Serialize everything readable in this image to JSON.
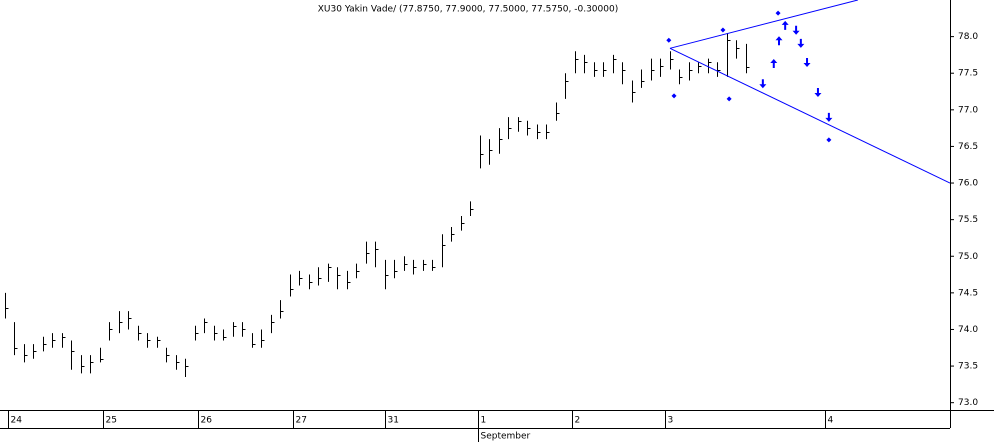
{
  "chart_data": {
    "type": "hlc",
    "title": "XU30 Yakin Vade/ (77.8750, 77.9000, 77.5000, 77.5750, -0.30000)",
    "x_group_label": "September",
    "color": "#000000",
    "xlim": [
      0,
      200
    ],
    "ylim": [
      72.9,
      78.5
    ],
    "yticks": [
      {
        "value": 73,
        "label": "73.0"
      },
      73.5,
      {
        "value": 74,
        "label": "74.0"
      },
      74.5,
      {
        "value": 75,
        "label": "75.0"
      },
      75.5,
      {
        "value": 76,
        "label": "76.0"
      },
      76.5,
      {
        "value": 77,
        "label": "77.0"
      },
      77.5,
      {
        "value": 78,
        "label": "78.0"
      }
    ],
    "xticks": [
      {
        "value": 1.7,
        "label": "24"
      },
      {
        "value": 21.7,
        "label": "25"
      },
      {
        "value": 41.7,
        "label": "26"
      },
      {
        "value": 61.7,
        "label": "27"
      },
      {
        "value": 81,
        "label": "31"
      },
      {
        "value": 100.6,
        "label": "1"
      },
      {
        "value": 120.4,
        "label": "2"
      },
      {
        "value": 140,
        "label": "3"
      },
      {
        "value": 173.7,
        "label": "4"
      }
    ],
    "x": [
      1,
      3,
      5,
      7,
      9,
      11,
      13,
      15,
      17,
      19,
      21,
      23,
      25,
      27,
      29,
      31,
      33,
      35,
      37,
      39,
      41,
      43,
      45,
      47,
      49,
      51,
      53,
      55,
      57,
      59,
      61,
      63,
      65,
      67,
      69,
      71,
      73,
      75,
      77,
      79,
      81,
      83,
      85,
      87,
      89,
      91,
      93,
      95,
      97,
      99,
      101,
      103,
      105,
      107,
      109,
      111,
      113,
      115,
      117,
      119,
      121,
      123,
      125,
      127,
      129,
      131,
      133,
      135,
      137,
      139,
      141,
      143,
      145,
      147,
      149,
      151,
      153,
      155,
      157
    ],
    "high": [
      74.5,
      74.1,
      73.8,
      73.8,
      73.9,
      73.95,
      73.95,
      73.85,
      73.65,
      73.65,
      73.75,
      74.1,
      74.25,
      74.25,
      74.05,
      73.95,
      73.9,
      73.75,
      73.65,
      73.6,
      74.05,
      74.15,
      74.05,
      74.0,
      74.1,
      74.1,
      73.95,
      74.0,
      74.2,
      74.4,
      74.75,
      74.8,
      74.75,
      74.85,
      74.9,
      74.85,
      74.8,
      74.9,
      75.2,
      75.2,
      74.95,
      74.95,
      75.0,
      74.95,
      74.95,
      74.95,
      75.3,
      75.4,
      75.55,
      75.75,
      76.65,
      76.6,
      76.75,
      76.9,
      76.9,
      76.85,
      76.8,
      76.8,
      77.1,
      77.5,
      77.8,
      77.75,
      77.65,
      77.65,
      77.75,
      77.65,
      77.4,
      77.55,
      77.7,
      77.7,
      77.8,
      77.55,
      77.65,
      77.65,
      77.7,
      77.65,
      78.05,
      77.95,
      77.9
    ],
    "low": [
      74.15,
      73.65,
      73.55,
      73.6,
      73.7,
      73.75,
      73.75,
      73.45,
      73.4,
      73.4,
      73.55,
      73.85,
      73.95,
      74.0,
      73.85,
      73.75,
      73.75,
      73.55,
      73.45,
      73.35,
      73.85,
      73.95,
      73.85,
      73.85,
      73.9,
      73.9,
      73.75,
      73.75,
      73.95,
      74.15,
      74.45,
      74.6,
      74.55,
      74.6,
      74.65,
      74.55,
      74.55,
      74.7,
      74.9,
      74.85,
      74.55,
      74.7,
      74.8,
      74.75,
      74.8,
      74.8,
      74.85,
      75.2,
      75.35,
      75.55,
      76.2,
      76.25,
      76.4,
      76.6,
      76.7,
      76.65,
      76.6,
      76.6,
      76.85,
      77.15,
      77.5,
      77.5,
      77.45,
      77.45,
      77.5,
      77.35,
      77.1,
      77.3,
      77.4,
      77.45,
      77.55,
      77.35,
      77.4,
      77.5,
      77.5,
      77.45,
      77.45,
      77.7,
      77.5
    ],
    "close": [
      74.3,
      73.75,
      73.65,
      73.7,
      73.8,
      73.85,
      73.9,
      73.7,
      73.5,
      73.55,
      73.6,
      74.0,
      74.1,
      74.15,
      73.95,
      73.85,
      73.85,
      73.65,
      73.55,
      73.5,
      73.95,
      74.1,
      73.95,
      73.9,
      74.05,
      74.0,
      73.8,
      73.85,
      74.1,
      74.25,
      74.55,
      74.7,
      74.65,
      74.7,
      74.85,
      74.75,
      74.65,
      74.8,
      75.05,
      75.1,
      74.75,
      74.8,
      74.9,
      74.85,
      74.9,
      74.85,
      75.15,
      75.3,
      75.45,
      75.65,
      76.4,
      76.45,
      76.6,
      76.75,
      76.85,
      76.75,
      76.7,
      76.7,
      76.95,
      77.4,
      77.7,
      77.65,
      77.55,
      77.55,
      77.7,
      77.55,
      77.25,
      77.4,
      77.55,
      77.6,
      77.7,
      77.45,
      77.55,
      77.6,
      77.65,
      77.55,
      77.95,
      77.85,
      77.58
    ],
    "annotation_color": "#0000ff",
    "trendlines": [
      {
        "x": [
          141.05,
          180.6
        ],
        "y": [
          77.84,
          78.5
        ]
      },
      {
        "x": [
          141.05,
          200
        ],
        "y": [
          77.84,
          76.0
        ]
      }
    ],
    "diamonds": {
      "x": [
        140.8,
        141.9,
        152.2,
        153.5,
        163.8,
        174.5
      ],
      "y": [
        77.95,
        77.19,
        78.09,
        77.15,
        78.32,
        76.59
      ]
    },
    "up_arrows": {
      "x": [
        162.9,
        164.0,
        165.3
      ],
      "y": [
        77.64,
        77.95,
        78.16
      ]
    },
    "down_arrows": {
      "x": [
        160.6,
        167.6,
        168.6,
        169.9,
        172.2,
        174.5
      ],
      "y": [
        77.35,
        78.08,
        77.9,
        77.64,
        77.23,
        76.89
      ]
    }
  }
}
